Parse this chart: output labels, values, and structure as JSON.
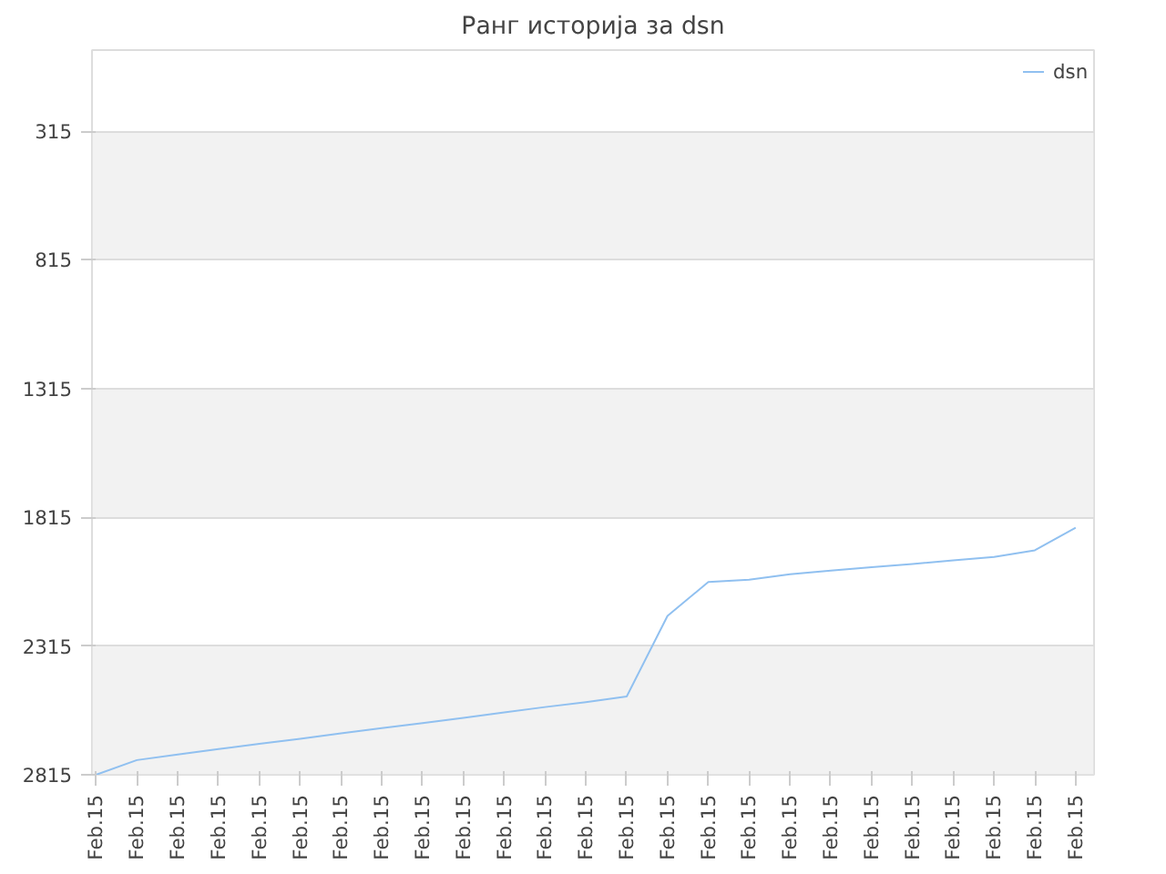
{
  "chart_data": {
    "type": "line",
    "title": "Ранг историја за dsn",
    "categories": [
      "Feb.15",
      "Feb.15",
      "Feb.15",
      "Feb.15",
      "Feb.15",
      "Feb.15",
      "Feb.15",
      "Feb.15",
      "Feb.15",
      "Feb.15",
      "Feb.15",
      "Feb.15",
      "Feb.15",
      "Feb.15",
      "Feb.15",
      "Feb.15",
      "Feb.15",
      "Feb.15",
      "Feb.15",
      "Feb.15",
      "Feb.15",
      "Feb.15",
      "Feb.15",
      "Feb.15",
      "Feb.15"
    ],
    "series": [
      {
        "name": "dsn",
        "color": "#90c0f0",
        "values": [
          2815,
          2758,
          2736,
          2715,
          2695,
          2675,
          2654,
          2634,
          2614,
          2594,
          2573,
          2552,
          2533,
          2511,
          2198,
          2066,
          2057,
          2036,
          2022,
          2009,
          1996,
          1982,
          1969,
          1943,
          1855
        ]
      }
    ],
    "ylim": [
      2815,
      0
    ],
    "yticks": [
      315,
      815,
      1315,
      1815,
      2315,
      2815
    ],
    "grid": "y",
    "legend": "top right"
  }
}
